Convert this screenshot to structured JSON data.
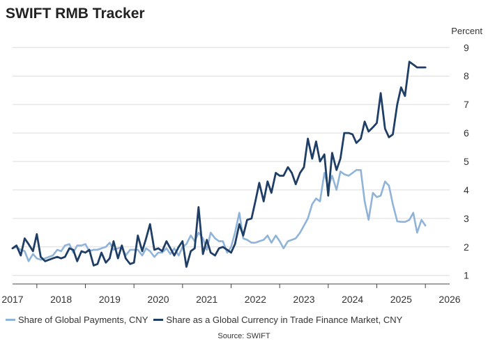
{
  "chart_data": {
    "type": "line",
    "title": "SWIFT RMB Tracker",
    "unit_label": "Percent",
    "source": "Source: SWIFT",
    "xlim": [
      2017.0,
      2026.0
    ],
    "ylim": [
      0.7,
      9.3
    ],
    "x_ticks": [
      "2017",
      "2018",
      "2019",
      "2020",
      "2021",
      "2022",
      "2023",
      "2024",
      "2025",
      "2026"
    ],
    "y_ticks": [
      "1",
      "2",
      "3",
      "4",
      "5",
      "6",
      "7",
      "8",
      "9"
    ],
    "y_tick_values": [
      1,
      2,
      3,
      4,
      5,
      6,
      7,
      8,
      9
    ],
    "grid": "horizontal",
    "legend_position": "bottom",
    "series": [
      {
        "name": "Share of Global Payments, CNY",
        "color": "#8fb3d9",
        "x": [
          2017.0,
          2017.08,
          2017.17,
          2017.25,
          2017.33,
          2017.42,
          2017.5,
          2017.58,
          2017.67,
          2017.75,
          2017.83,
          2017.92,
          2018.0,
          2018.08,
          2018.17,
          2018.25,
          2018.33,
          2018.42,
          2018.5,
          2018.58,
          2018.67,
          2018.75,
          2018.83,
          2018.92,
          2019.0,
          2019.08,
          2019.17,
          2019.25,
          2019.33,
          2019.42,
          2019.5,
          2019.58,
          2019.67,
          2019.75,
          2019.83,
          2019.92,
          2020.0,
          2020.08,
          2020.17,
          2020.25,
          2020.33,
          2020.42,
          2020.5,
          2020.58,
          2020.67,
          2020.75,
          2020.83,
          2020.92,
          2021.0,
          2021.08,
          2021.17,
          2021.25,
          2021.33,
          2021.42,
          2021.5,
          2021.58,
          2021.67,
          2021.75,
          2021.83,
          2021.92,
          2022.0,
          2022.08,
          2022.17,
          2022.25,
          2022.33,
          2022.42,
          2022.5,
          2022.58,
          2022.67,
          2022.75,
          2022.83,
          2022.92,
          2023.0,
          2023.08,
          2023.17,
          2023.25,
          2023.33,
          2023.42,
          2023.5,
          2023.58,
          2023.67,
          2023.75,
          2023.83,
          2023.92,
          2024.0,
          2024.08,
          2024.17,
          2024.25,
          2024.33,
          2024.42,
          2024.5,
          2024.58,
          2024.67,
          2024.75,
          2024.83,
          2024.92,
          2025.0,
          2025.08,
          2025.17,
          2025.25,
          2025.33,
          2025.42,
          2025.5
        ],
        "y": [
          1.95,
          2.0,
          1.9,
          1.85,
          1.5,
          1.75,
          1.6,
          1.55,
          1.6,
          1.65,
          1.7,
          1.9,
          1.85,
          2.05,
          2.1,
          1.8,
          2.05,
          2.05,
          2.1,
          1.85,
          1.9,
          1.9,
          1.95,
          2.0,
          2.15,
          1.9,
          1.95,
          2.0,
          1.7,
          1.9,
          1.9,
          1.9,
          1.7,
          1.95,
          1.85,
          1.65,
          1.8,
          1.8,
          1.95,
          1.75,
          1.95,
          1.7,
          2.0,
          2.1,
          2.4,
          2.2,
          2.5,
          2.3,
          1.9,
          2.5,
          2.3,
          2.2,
          2.2,
          1.8,
          2.0,
          2.5,
          3.2,
          2.3,
          2.25,
          2.15,
          2.15,
          2.2,
          2.25,
          2.4,
          2.15,
          2.4,
          2.2,
          1.95,
          2.2,
          2.25,
          2.3,
          2.5,
          2.75,
          3.0,
          3.5,
          3.7,
          3.6,
          4.6,
          4.1,
          4.5,
          4.0,
          4.65,
          4.55,
          4.5,
          4.6,
          4.7,
          4.7,
          3.6,
          2.95,
          3.9,
          3.75,
          3.8,
          4.3,
          4.15,
          3.5,
          2.9,
          2.88,
          2.88,
          2.95,
          3.2,
          2.5,
          2.95,
          2.75
        ]
      },
      {
        "name": "Share as a Global Currency in Trade Finance Market, CNY",
        "color": "#1f3e66",
        "x": [
          2017.0,
          2017.08,
          2017.17,
          2017.25,
          2017.33,
          2017.42,
          2017.5,
          2017.58,
          2017.67,
          2017.75,
          2017.83,
          2017.92,
          2018.0,
          2018.08,
          2018.17,
          2018.25,
          2018.33,
          2018.42,
          2018.5,
          2018.58,
          2018.67,
          2018.75,
          2018.83,
          2018.92,
          2019.0,
          2019.08,
          2019.17,
          2019.25,
          2019.33,
          2019.42,
          2019.5,
          2019.58,
          2019.67,
          2019.75,
          2019.83,
          2019.92,
          2020.0,
          2020.08,
          2020.17,
          2020.25,
          2020.33,
          2020.42,
          2020.5,
          2020.58,
          2020.67,
          2020.75,
          2020.83,
          2020.92,
          2021.0,
          2021.08,
          2021.17,
          2021.25,
          2021.33,
          2021.42,
          2021.5,
          2021.58,
          2021.67,
          2021.75,
          2021.83,
          2021.92,
          2022.0,
          2022.08,
          2022.17,
          2022.25,
          2022.33,
          2022.42,
          2022.5,
          2022.58,
          2022.67,
          2022.75,
          2022.83,
          2022.92,
          2023.0,
          2023.08,
          2023.17,
          2023.25,
          2023.33,
          2023.42,
          2023.5,
          2023.58,
          2023.67,
          2023.75,
          2023.83,
          2023.92,
          2024.0,
          2024.08,
          2024.17,
          2024.25,
          2024.33,
          2024.42,
          2024.5,
          2024.58,
          2024.67,
          2024.75,
          2024.83,
          2024.92,
          2025.0,
          2025.08,
          2025.17,
          2025.25,
          2025.33,
          2025.42,
          2025.5
        ],
        "y": [
          1.95,
          2.05,
          1.7,
          2.3,
          2.1,
          1.85,
          2.45,
          1.65,
          1.5,
          1.55,
          1.6,
          1.65,
          1.6,
          1.65,
          1.95,
          1.9,
          1.5,
          1.85,
          1.8,
          1.9,
          1.35,
          1.4,
          1.8,
          1.45,
          1.6,
          2.2,
          1.6,
          2.05,
          1.6,
          1.4,
          1.45,
          2.4,
          1.85,
          2.3,
          2.8,
          1.9,
          1.95,
          1.85,
          2.2,
          1.95,
          1.7,
          2.0,
          2.2,
          1.3,
          1.85,
          1.95,
          3.4,
          1.75,
          2.25,
          1.8,
          1.7,
          1.95,
          2.0,
          1.9,
          1.8,
          2.1,
          2.8,
          2.4,
          2.95,
          3.0,
          3.6,
          4.25,
          3.6,
          4.3,
          3.9,
          4.6,
          4.5,
          4.5,
          4.8,
          4.6,
          4.2,
          4.6,
          4.8,
          5.8,
          5.1,
          5.7,
          5.0,
          5.25,
          3.8,
          5.3,
          4.7,
          5.1,
          6.0,
          6.0,
          5.95,
          5.65,
          5.8,
          6.4,
          6.05,
          6.2,
          6.35,
          7.4,
          6.15,
          5.85,
          5.95,
          7.0,
          7.6,
          7.3,
          8.5,
          8.4,
          8.3,
          8.3,
          8.3
        ]
      }
    ]
  }
}
